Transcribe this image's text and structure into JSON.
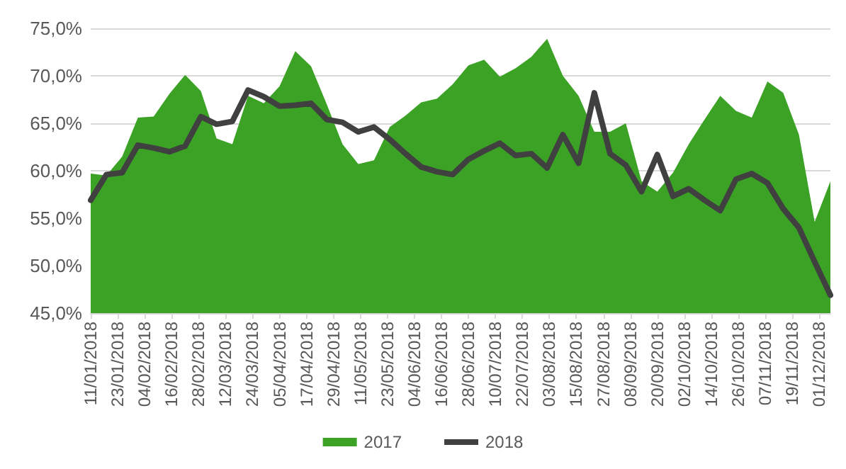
{
  "chart_data": {
    "type": "area",
    "x": [
      "2018-01-11",
      "2018-01-18",
      "2018-01-25",
      "2018-02-01",
      "2018-02-08",
      "2018-02-15",
      "2018-02-22",
      "2018-03-01",
      "2018-03-08",
      "2018-03-15",
      "2018-03-22",
      "2018-03-29",
      "2018-04-05",
      "2018-04-12",
      "2018-04-19",
      "2018-04-26",
      "2018-05-03",
      "2018-05-10",
      "2018-05-17",
      "2018-05-24",
      "2018-05-31",
      "2018-06-07",
      "2018-06-14",
      "2018-06-21",
      "2018-06-28",
      "2018-07-05",
      "2018-07-12",
      "2018-07-19",
      "2018-07-26",
      "2018-08-02",
      "2018-08-09",
      "2018-08-16",
      "2018-08-23",
      "2018-08-30",
      "2018-09-06",
      "2018-09-13",
      "2018-09-20",
      "2018-09-27",
      "2018-10-04",
      "2018-10-11",
      "2018-10-18",
      "2018-10-25",
      "2018-11-01",
      "2018-11-08",
      "2018-11-15",
      "2018-11-22",
      "2018-11-29",
      "2018-12-06"
    ],
    "series": [
      {
        "name": "2017",
        "color": "#3ba226",
        "values": [
          59.7,
          59.5,
          61.5,
          65.6,
          65.7,
          68.1,
          70.1,
          68.4,
          63.4,
          62.8,
          67.9,
          67.1,
          68.9,
          72.6,
          71.0,
          67.0,
          62.8,
          60.7,
          61.1,
          64.6,
          65.8,
          67.2,
          67.6,
          69.1,
          71.1,
          71.7,
          69.9,
          70.8,
          72.0,
          73.9,
          70.0,
          67.9,
          64.1,
          64.1,
          65.0,
          58.9,
          57.8,
          59.8,
          62.8,
          65.4,
          67.9,
          66.3,
          65.6,
          69.4,
          68.2,
          63.8,
          54.6,
          58.9
        ]
      },
      {
        "name": "2018",
        "type": "line",
        "color": "#404040",
        "values": [
          56.9,
          59.6,
          59.8,
          62.7,
          62.4,
          62.0,
          62.6,
          65.7,
          64.9,
          65.2,
          68.5,
          67.8,
          66.8,
          66.9,
          67.1,
          65.4,
          65.1,
          64.1,
          64.6,
          63.3,
          61.8,
          60.4,
          59.9,
          59.6,
          61.2,
          62.1,
          62.9,
          61.6,
          61.8,
          60.3,
          63.8,
          60.8,
          68.2,
          61.8,
          60.6,
          57.8,
          61.7,
          57.3,
          58.1,
          56.9,
          55.8,
          59.1,
          59.7,
          58.7,
          56.0,
          54.0,
          50.4,
          46.9
        ]
      }
    ],
    "xlim": [
      "2018-01-11",
      "2018-12-06"
    ],
    "xticks": [
      {
        "value": "2018-01-11",
        "label": "11/01/2018"
      },
      {
        "value": "2018-01-23",
        "label": "23/01/2018"
      },
      {
        "value": "2018-02-04",
        "label": "04/02/2018"
      },
      {
        "value": "2018-02-16",
        "label": "16/02/2018"
      },
      {
        "value": "2018-02-28",
        "label": "28/02/2018"
      },
      {
        "value": "2018-03-12",
        "label": "12/03/2018"
      },
      {
        "value": "2018-03-24",
        "label": "24/03/2018"
      },
      {
        "value": "2018-04-05",
        "label": "05/04/2018"
      },
      {
        "value": "2018-04-17",
        "label": "17/04/2018"
      },
      {
        "value": "2018-04-29",
        "label": "29/04/2018"
      },
      {
        "value": "2018-05-11",
        "label": "11/05/2018"
      },
      {
        "value": "2018-05-23",
        "label": "23/05/2018"
      },
      {
        "value": "2018-06-04",
        "label": "04/06/2018"
      },
      {
        "value": "2018-06-16",
        "label": "16/06/2018"
      },
      {
        "value": "2018-06-28",
        "label": "28/06/2018"
      },
      {
        "value": "2018-07-10",
        "label": "10/07/2018"
      },
      {
        "value": "2018-07-22",
        "label": "22/07/2018"
      },
      {
        "value": "2018-08-03",
        "label": "03/08/2018"
      },
      {
        "value": "2018-08-15",
        "label": "15/08/2018"
      },
      {
        "value": "2018-08-27",
        "label": "27/08/2018"
      },
      {
        "value": "2018-09-08",
        "label": "08/09/2018"
      },
      {
        "value": "2018-09-20",
        "label": "20/09/2018"
      },
      {
        "value": "2018-10-02",
        "label": "02/10/2018"
      },
      {
        "value": "2018-10-14",
        "label": "14/10/2018"
      },
      {
        "value": "2018-10-26",
        "label": "26/10/2018"
      },
      {
        "value": "2018-11-07",
        "label": "07/11/2018"
      },
      {
        "value": "2018-11-19",
        "label": "19/11/2018"
      },
      {
        "value": "2018-12-01",
        "label": "01/12/2018"
      }
    ],
    "ylim": [
      45,
      75
    ],
    "yticks": [
      {
        "value": 45,
        "label": "45,0%"
      },
      {
        "value": 50,
        "label": "50,0%"
      },
      {
        "value": 55,
        "label": "55,0%"
      },
      {
        "value": 60,
        "label": "60,0%"
      },
      {
        "value": 65,
        "label": "65,0%"
      },
      {
        "value": 70,
        "label": "70,0%"
      },
      {
        "value": 75,
        "label": "75,0%"
      }
    ],
    "grid": "y",
    "legend": "bottom",
    "marker": "none",
    "line_style": "solid"
  }
}
